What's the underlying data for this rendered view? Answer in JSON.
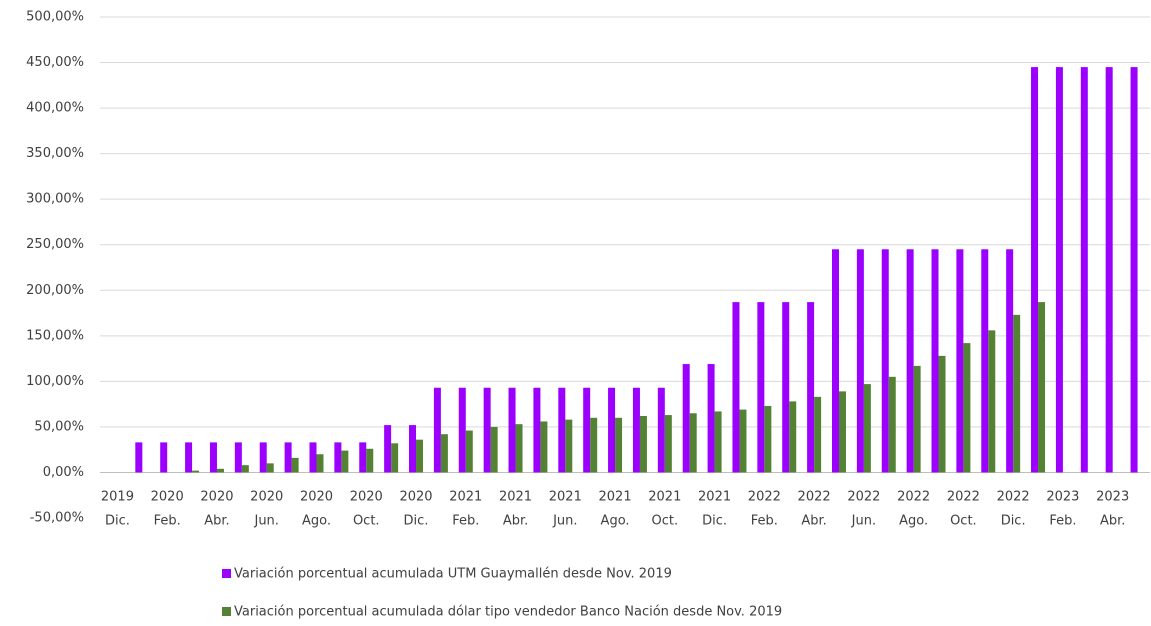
{
  "chart_data": {
    "type": "bar",
    "categories": [
      [
        "2019",
        "Dic."
      ],
      null,
      [
        "2020",
        "Feb."
      ],
      null,
      [
        "2020",
        "Abr."
      ],
      null,
      [
        "2020",
        "Jun."
      ],
      null,
      [
        "2020",
        "Ago."
      ],
      null,
      [
        "2020",
        "Oct."
      ],
      null,
      [
        "2020",
        "Dic."
      ],
      null,
      [
        "2021",
        "Feb."
      ],
      null,
      [
        "2021",
        "Abr."
      ],
      null,
      [
        "2021",
        "Jun."
      ],
      null,
      [
        "2021",
        "Ago."
      ],
      null,
      [
        "2021",
        "Oct."
      ],
      null,
      [
        "2021",
        "Dic."
      ],
      null,
      [
        "2022",
        "Feb."
      ],
      null,
      [
        "2022",
        "Abr."
      ],
      null,
      [
        "2022",
        "Jun."
      ],
      null,
      [
        "2022",
        "Ago."
      ],
      null,
      [
        "2022",
        "Oct."
      ],
      null,
      [
        "2022",
        "Dic."
      ],
      null,
      [
        "2023",
        "Feb."
      ],
      null,
      [
        "2023",
        "Abr."
      ],
      null
    ],
    "series": [
      {
        "name": "Variación porcentual acumulada UTM Guaymallén desde Nov. 2019",
        "color": "#9b00ff",
        "values": [
          null,
          33,
          33,
          33,
          33,
          33,
          33,
          33,
          33,
          33,
          33,
          52,
          52,
          93,
          93,
          93,
          93,
          93,
          93,
          93,
          93,
          93,
          93,
          119,
          119,
          187,
          187,
          187,
          187,
          245,
          245,
          245,
          245,
          245,
          245,
          245,
          245,
          445,
          445,
          445,
          445,
          445
        ]
      },
      {
        "name": "Variación porcentual acumulada dólar tipo vendedor Banco Nación desde Nov. 2019",
        "color": "#548235",
        "values": [
          null,
          0,
          0,
          2,
          4,
          8,
          10,
          16,
          20,
          24,
          26,
          32,
          36,
          42,
          46,
          50,
          53,
          56,
          58,
          60,
          60,
          62,
          63,
          65,
          67,
          69,
          73,
          78,
          83,
          89,
          97,
          105,
          117,
          128,
          142,
          156,
          173,
          187,
          null,
          null,
          null,
          null
        ]
      }
    ],
    "ylim": [
      -50,
      500
    ],
    "yticks": [
      {
        "value": -50,
        "label": "-50,00%"
      },
      {
        "value": 0,
        "label": "0,00%"
      },
      {
        "value": 50,
        "label": "50,00%"
      },
      {
        "value": 100,
        "label": "100,00%"
      },
      {
        "value": 150,
        "label": "150,00%"
      },
      {
        "value": 200,
        "label": "200,00%"
      },
      {
        "value": 250,
        "label": "250,00%"
      },
      {
        "value": 300,
        "label": "300,00%"
      },
      {
        "value": 350,
        "label": "350,00%"
      },
      {
        "value": 400,
        "label": "400,00%"
      },
      {
        "value": 450,
        "label": "450,00%"
      },
      {
        "value": 500,
        "label": "500,00%"
      }
    ],
    "grid": true,
    "legend": "bottom"
  }
}
